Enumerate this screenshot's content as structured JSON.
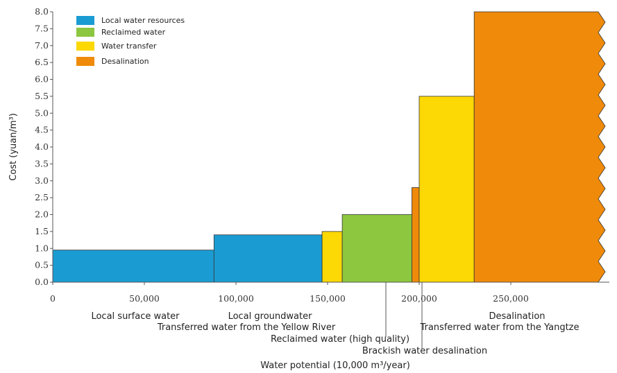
{
  "chart_data": {
    "type": "bar",
    "xlabel": "Water potential (10,000 m³/year)",
    "ylabel": "Cost (yuan/m³)",
    "xlim": [
      0,
      300000
    ],
    "ylim": [
      0,
      8.0
    ],
    "x_ticks": [
      "0",
      "50,000",
      "100,000",
      "150,000",
      "200,000",
      "250,000"
    ],
    "x_tick_values": [
      0,
      50000,
      100000,
      150000,
      200000,
      250000
    ],
    "y_ticks": [
      "0.0",
      "0.5",
      "1.0",
      "1.5",
      "2.0",
      "2.5",
      "3.0",
      "3.5",
      "4.0",
      "4.5",
      "5.0",
      "5.5",
      "6.0",
      "6.5",
      "7.0",
      "7.5",
      "8.0"
    ],
    "y_tick_values": [
      0,
      0.5,
      1.0,
      1.5,
      2.0,
      2.5,
      3.0,
      3.5,
      4.0,
      4.5,
      5.0,
      5.5,
      6.0,
      6.5,
      7.0,
      7.5,
      8.0
    ],
    "legend": [
      {
        "name": "Local water resources",
        "color": "#1a9cd2"
      },
      {
        "name": "Reclaimed water",
        "color": "#8dc63f"
      },
      {
        "name": "Water transfer",
        "color": "#fcd804"
      },
      {
        "name": "Desalination",
        "color": "#ef8a0a"
      }
    ],
    "legend_position": "top-left",
    "bars": [
      {
        "label": "Local surface water",
        "x_start": 0,
        "x_end": 88000,
        "value": 0.95,
        "group": "Local water resources",
        "color": "#1a9cd2"
      },
      {
        "label": "Local groundwater",
        "x_start": 88000,
        "x_end": 147000,
        "value": 1.4,
        "group": "Local water resources",
        "color": "#1a9cd2"
      },
      {
        "label": "Transferred water from the Yellow River",
        "x_start": 147000,
        "x_end": 158000,
        "value": 1.5,
        "group": "Water transfer",
        "color": "#fcd804"
      },
      {
        "label": "Reclaimed water (high quality)",
        "x_start": 158000,
        "x_end": 196000,
        "value": 2.0,
        "group": "Reclaimed water",
        "color": "#8dc63f"
      },
      {
        "label": "Brackish water desalination",
        "x_start": 196000,
        "x_end": 200000,
        "value": 2.8,
        "group": "Desalination",
        "color": "#ef8a0a"
      },
      {
        "label": "Transferred water from the Yangtze",
        "x_start": 200000,
        "x_end": 230000,
        "value": 5.5,
        "group": "Water transfer",
        "color": "#fcd804"
      },
      {
        "label": "Desalination",
        "x_start": 230000,
        "x_end": 300000,
        "value": 8.0,
        "group": "Desalination",
        "color": "#ef8a0a"
      }
    ]
  }
}
